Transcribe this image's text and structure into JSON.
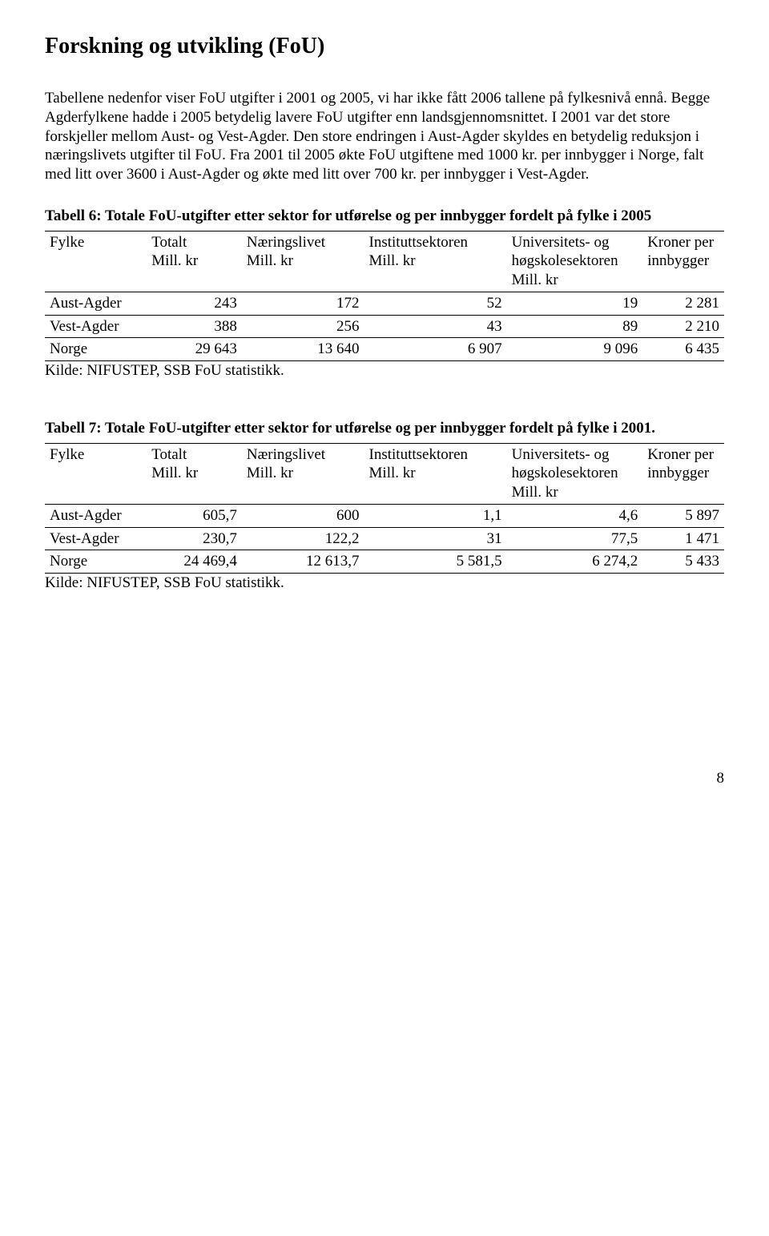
{
  "title": "Forskning og utvikling (FoU)",
  "paragraph": "Tabellene nedenfor viser FoU utgifter i 2001 og 2005, vi har ikke fått 2006 tallene på fylkesnivå ennå. Begge Agderfylkene hadde i 2005 betydelig lavere FoU utgifter enn landsgjennomsnittet. I 2001 var det store forskjeller mellom Aust- og Vest-Agder. Den store endringen i Aust-Agder skyldes en betydelig reduksjon i næringslivets utgifter til FoU. Fra 2001 til 2005 økte FoU utgiftene med 1000 kr. per innbygger i Norge, falt med litt over 3600 i Aust-Agder og økte med litt over 700 kr. per innbygger i Vest-Agder.",
  "table6": {
    "caption": "Tabell 6: Totale FoU-utgifter etter sektor for utførelse og per innbygger fordelt på fylke i 2005",
    "columns": {
      "c0": "Fylke",
      "c1a": "Totalt",
      "c1b": "Mill. kr",
      "c2a": "Næringslivet",
      "c2b": "Mill. kr",
      "c3a": "Instituttsektoren",
      "c3b": "Mill. kr",
      "c4a": "Universitets- og",
      "c4b": "høgskolesektoren",
      "c4c": "Mill. kr",
      "c5a": "Kroner per",
      "c5b": "innbygger"
    },
    "rows": [
      {
        "fylke": "Aust-Agder",
        "c1": "243",
        "c2": "172",
        "c3": "52",
        "c4": "19",
        "c5": "2 281"
      },
      {
        "fylke": "Vest-Agder",
        "c1": "388",
        "c2": "256",
        "c3": "43",
        "c4": "89",
        "c5": "2 210"
      },
      {
        "fylke": "Norge",
        "c1": "29 643",
        "c2": "13 640",
        "c3": "6 907",
        "c4": "9 096",
        "c5": "6 435"
      }
    ],
    "source": "Kilde: NIFUSTEP, SSB FoU statistikk."
  },
  "table7": {
    "caption": "Tabell 7: Totale FoU-utgifter etter sektor for utførelse og per innbygger fordelt på fylke i 2001.",
    "columns": {
      "c0": "Fylke",
      "c1a": "Totalt",
      "c1b": "Mill. kr",
      "c2a": "Næringslivet",
      "c2b": "Mill. kr",
      "c3a": "Instituttsektoren",
      "c3b": "Mill. kr",
      "c4a": "Universitets- og",
      "c4b": "høgskolesektoren",
      "c4c": "Mill. kr",
      "c5a": "Kroner per",
      "c5b": "innbygger"
    },
    "rows": [
      {
        "fylke": "Aust-Agder",
        "c1": "605,7",
        "c2": "600",
        "c3": "1,1",
        "c4": "4,6",
        "c5": "5 897"
      },
      {
        "fylke": "Vest-Agder",
        "c1": "230,7",
        "c2": "122,2",
        "c3": "31",
        "c4": "77,5",
        "c5": "1 471"
      },
      {
        "fylke": "Norge",
        "c1": "24 469,4",
        "c2": "12 613,7",
        "c3": "5 581,5",
        "c4": "6 274,2",
        "c5": "5 433"
      }
    ],
    "source": "Kilde: NIFUSTEP, SSB FoU statistikk."
  },
  "pageNumber": "8",
  "style": {
    "font_family": "Times New Roman",
    "title_fontsize": 28,
    "body_fontsize": 19,
    "text_color": "#000000",
    "background_color": "#ffffff",
    "table_border_color": "#000000"
  }
}
